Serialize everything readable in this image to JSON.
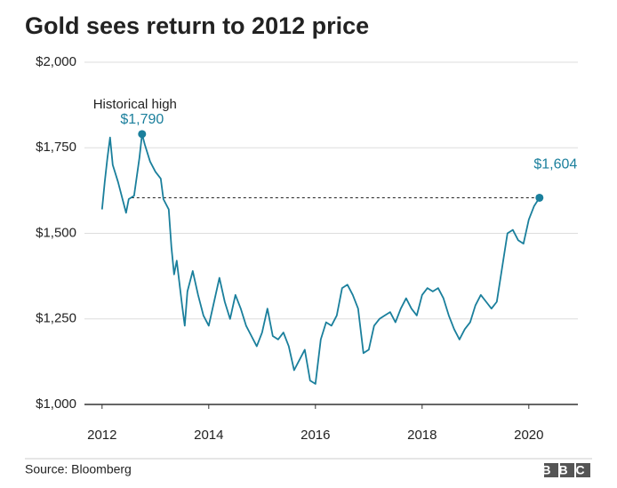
{
  "chart_data": {
    "type": "line",
    "title": "Gold sees return to 2012 price",
    "source": "Source: Bloomberg",
    "logo": "BBC",
    "annotation": "Historical high",
    "xlim": [
      2011.67,
      2020.92
    ],
    "xticks": [
      2012,
      2014,
      2016,
      2018,
      2020
    ],
    "ylim": [
      1000,
      2000
    ],
    "yticks": [
      {
        "value": 1000,
        "label": "$1,000"
      },
      {
        "value": 1250,
        "label": "$1,250"
      },
      {
        "value": 1500,
        "label": "$1,500"
      },
      {
        "value": 1750,
        "label": "$1,750"
      },
      {
        "value": 2000,
        "label": "$2,000"
      }
    ],
    "grid": true,
    "reference_line": {
      "y": 1604,
      "from_x": 2012.55
    },
    "x": [
      2012.0,
      2012.05,
      2012.1,
      2012.15,
      2012.2,
      2012.3,
      2012.4,
      2012.45,
      2012.5,
      2012.6,
      2012.7,
      2012.75,
      2012.8,
      2012.9,
      2013.0,
      2013.1,
      2013.15,
      2013.25,
      2013.3,
      2013.35,
      2013.4,
      2013.5,
      2013.55,
      2013.6,
      2013.7,
      2013.8,
      2013.9,
      2014.0,
      2014.1,
      2014.2,
      2014.3,
      2014.4,
      2014.5,
      2014.6,
      2014.7,
      2014.8,
      2014.9,
      2015.0,
      2015.1,
      2015.2,
      2015.3,
      2015.4,
      2015.5,
      2015.6,
      2015.7,
      2015.8,
      2015.9,
      2016.0,
      2016.1,
      2016.2,
      2016.3,
      2016.4,
      2016.5,
      2016.6,
      2016.7,
      2016.8,
      2016.9,
      2017.0,
      2017.1,
      2017.2,
      2017.3,
      2017.4,
      2017.5,
      2017.6,
      2017.7,
      2017.8,
      2017.9,
      2018.0,
      2018.1,
      2018.2,
      2018.3,
      2018.4,
      2018.5,
      2018.6,
      2018.7,
      2018.8,
      2018.9,
      2019.0,
      2019.1,
      2019.2,
      2019.3,
      2019.4,
      2019.5,
      2019.6,
      2019.7,
      2019.8,
      2019.9,
      2020.0,
      2020.1,
      2020.2
    ],
    "series": [
      {
        "name": "Gold price",
        "color": "#1a7f9c",
        "values": [
          1570,
          1650,
          1720,
          1780,
          1700,
          1650,
          1590,
          1560,
          1600,
          1610,
          1720,
          1790,
          1760,
          1710,
          1680,
          1660,
          1600,
          1570,
          1460,
          1380,
          1420,
          1290,
          1230,
          1330,
          1390,
          1320,
          1260,
          1230,
          1300,
          1370,
          1300,
          1250,
          1320,
          1280,
          1230,
          1200,
          1170,
          1210,
          1280,
          1200,
          1190,
          1210,
          1170,
          1100,
          1130,
          1160,
          1070,
          1060,
          1190,
          1240,
          1230,
          1260,
          1340,
          1350,
          1320,
          1280,
          1150,
          1160,
          1230,
          1250,
          1260,
          1270,
          1240,
          1280,
          1310,
          1280,
          1260,
          1320,
          1340,
          1330,
          1340,
          1310,
          1260,
          1220,
          1190,
          1220,
          1240,
          1290,
          1320,
          1300,
          1280,
          1300,
          1400,
          1500,
          1510,
          1480,
          1470,
          1540,
          1580,
          1604
        ],
        "value_labels": [
          null,
          null,
          null,
          null,
          null,
          null,
          null,
          null,
          null,
          null,
          null,
          "$1,790",
          null,
          null,
          null,
          null,
          null,
          null,
          null,
          null,
          null,
          null,
          null,
          null,
          null,
          null,
          null,
          null,
          null,
          null,
          null,
          null,
          null,
          null,
          null,
          null,
          null,
          null,
          null,
          null,
          null,
          null,
          null,
          null,
          null,
          null,
          null,
          null,
          null,
          null,
          null,
          null,
          null,
          null,
          null,
          null,
          null,
          null,
          null,
          null,
          null,
          null,
          null,
          null,
          null,
          null,
          null,
          null,
          null,
          null,
          null,
          null,
          null,
          null,
          null,
          null,
          null,
          null,
          null,
          null,
          null,
          null,
          null,
          null,
          null,
          null,
          null,
          null,
          null,
          "$1,604"
        ]
      }
    ]
  }
}
